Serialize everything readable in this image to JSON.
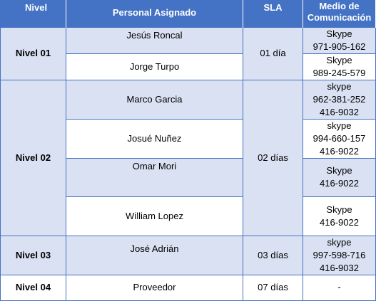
{
  "table": {
    "headers": {
      "nivel": "Nivel",
      "personal": "Personal Asignado",
      "sla": "SLA",
      "medio_line1": "Medio de",
      "medio_line2": "Comunicación"
    },
    "groups": [
      {
        "nivel": "Nivel 01",
        "sla": "01 día",
        "rows": [
          {
            "personal": "Jesús Roncal",
            "medio": [
              "Skype",
              "971-905-162"
            ]
          },
          {
            "personal": "Jorge Turpo",
            "medio": [
              "Skype",
              "989-245-579"
            ]
          }
        ]
      },
      {
        "nivel": "Nivel 02",
        "sla": "02 días",
        "rows": [
          {
            "personal": "Marco Garcia",
            "medio": [
              "skype",
              "962-381-252",
              "416-9032"
            ]
          },
          {
            "personal": "Josué Nuñez",
            "medio": [
              "skype",
              "994-660-157",
              "416-9022"
            ]
          },
          {
            "personal": "Omar Mori",
            "medio": [
              "Skype",
              "416-9022"
            ]
          },
          {
            "personal": "William Lopez",
            "medio": [
              "Skype",
              "416-9022"
            ]
          }
        ]
      },
      {
        "nivel": "Nivel 03",
        "sla": "03 días",
        "rows": [
          {
            "personal": "José Adrián",
            "medio": [
              "skype",
              "997-598-716",
              "416-9032"
            ]
          }
        ]
      },
      {
        "nivel": "Nivel 04",
        "sla": "07 días",
        "rows": [
          {
            "personal": "Proveedor",
            "medio": [
              "-"
            ]
          }
        ]
      }
    ]
  },
  "colors": {
    "header_bg": "#4472c4",
    "band_bg": "#d9e1f2",
    "white_bg": "#ffffff",
    "border": "#4472c4"
  }
}
